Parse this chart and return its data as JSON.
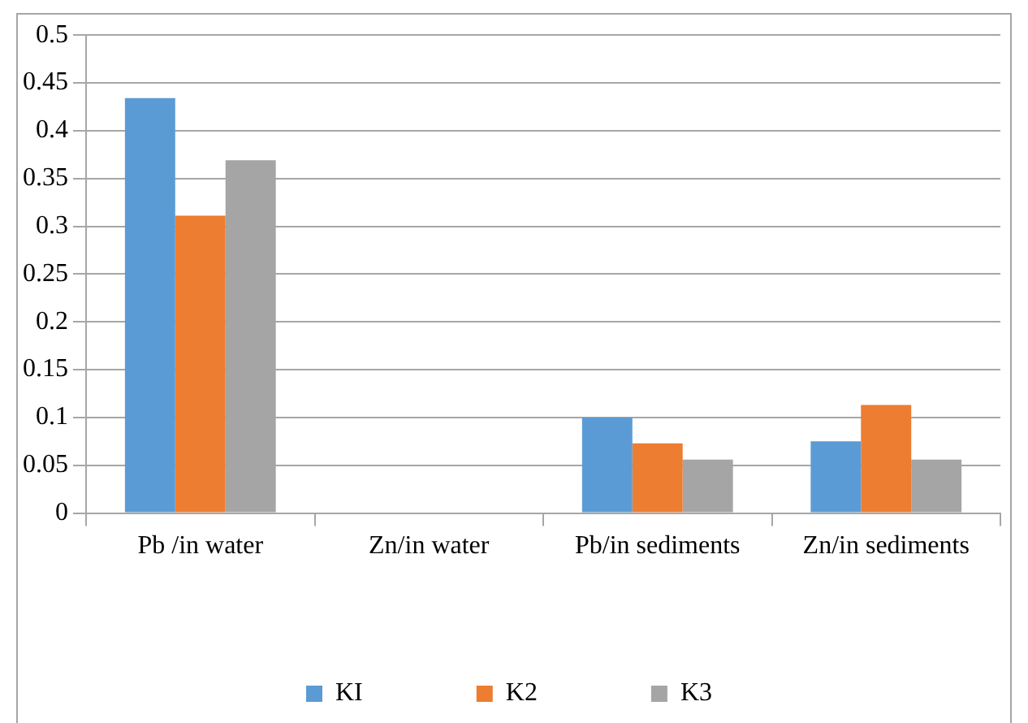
{
  "chart_data": {
    "type": "bar",
    "categories": [
      "Pb /in water",
      "Zn/in water",
      "Pb/in sediments",
      "Zn/in sediments"
    ],
    "series": [
      {
        "name": "KI",
        "color": "#5b9bd5",
        "values": [
          0.434,
          0,
          0.1,
          0.075
        ]
      },
      {
        "name": "K2",
        "color": "#ed7d31",
        "values": [
          0.311,
          0,
          0.073,
          0.113
        ]
      },
      {
        "name": "K3",
        "color": "#a5a5a5",
        "values": [
          0.369,
          0,
          0.056,
          0.056
        ]
      }
    ],
    "ylim": [
      0,
      0.5
    ],
    "yticks": [
      0,
      0.05,
      0.1,
      0.15,
      0.2,
      0.25,
      0.3,
      0.35,
      0.4,
      0.45,
      0.5
    ],
    "grid": "y",
    "legend": "bottom"
  }
}
